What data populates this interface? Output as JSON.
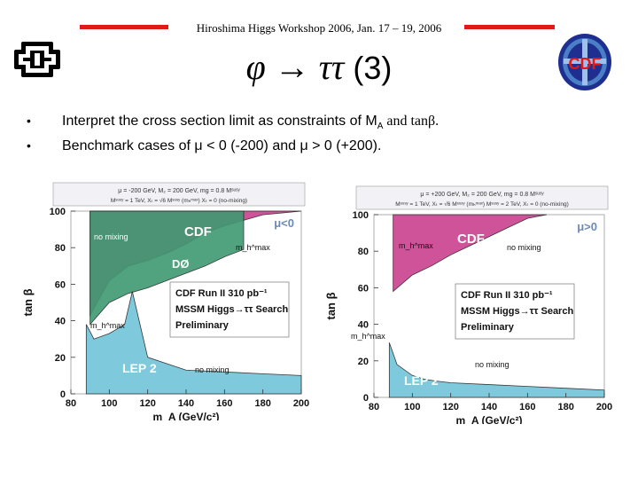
{
  "header": "Hiroshima Higgs Workshop 2006, Jan. 17 – 19, 2006",
  "title": {
    "text": "φ → ττ",
    "number": "(3)"
  },
  "bullets": [
    {
      "text": "Interpret the cross section limit as constraints of M",
      "sub": "A",
      "tail": " and tanβ."
    },
    {
      "text": "Benchmark cases of μ < 0 (-200) and μ > 0 (+200)."
    }
  ],
  "logos": {
    "left": "fermilab-logo",
    "right_text": "CDF"
  },
  "colors": {
    "cdf_magenta": "#c9418f",
    "d0_green": "#3f9a72",
    "lep_cyan": "#71c4d9",
    "accent_red": "#e01919"
  },
  "plots": [
    {
      "params_line1": "μ = -200 GeV, M₂ = 200 GeV, mɡ = 0.8 Mˢᵘˢʸ",
      "params_line2": "Mˢᵘˢʸ = 1 TeV, Xₜ = √6 Mˢᵘˢʸ (mₕᵐᵃˣ)   Xₜ = 0 (no-mixing)",
      "mu_label": "μ<0",
      "chart_data": {
        "type": "area",
        "xlabel": "m_A (GeV/c²)",
        "ylabel": "tan β",
        "xlim": [
          80,
          200
        ],
        "ylim": [
          0,
          100
        ],
        "xticks": [
          80,
          100,
          120,
          140,
          160,
          180,
          200
        ],
        "yticks": [
          0,
          20,
          40,
          60,
          80,
          100
        ],
        "series": [
          {
            "name": "CDF",
            "x": [
              90,
              100,
              110,
              120,
              130,
              140,
              150,
              160,
              180,
              200
            ],
            "y": [
              43,
              62,
              70,
              73,
              77,
              82,
              88,
              92,
              98,
              100
            ]
          },
          {
            "name": "DØ",
            "x": [
              90,
              100,
              110,
              120,
              130,
              140,
              150,
              160,
              170
            ],
            "y": [
              38,
              50,
              55,
              58,
              62,
              66,
              70,
              75,
              79
            ]
          },
          {
            "name": "LEP 2",
            "x": [
              88,
              92,
              100,
              108,
              112,
              120,
              140,
              160,
              180,
              200
            ],
            "y": [
              38,
              30,
              33,
              38,
              56,
              20,
              13,
              12,
              11,
              10
            ]
          }
        ],
        "annotations": [
          "no mixing",
          "CDF",
          "m_h^max",
          "DØ",
          "m_h^max",
          "LEP 2",
          "no mixing"
        ],
        "legend_box": [
          "CDF Run II  310 pb⁻¹",
          "MSSM Higgs→ττ Search",
          "Preliminary"
        ]
      }
    },
    {
      "params_line1": "μ = +200 GeV, M₂ = 200 GeV, mɡ = 0.8 Mˢᵘˢʸ",
      "params_line2": "Mˢᵘˢʸ = 1 TeV, Xₜ = √6 Mˢᵘˢʸ (mₕᵐᵃˣ)   Mˢᵘˢʸ = 2 TeV, Xₜ = 0 (no-mixing)",
      "mu_label": "μ>0",
      "chart_data": {
        "type": "area",
        "xlabel": "m_A (GeV/c²)",
        "ylabel": "tan β",
        "xlim": [
          80,
          200
        ],
        "ylim": [
          0,
          100
        ],
        "xticks": [
          80,
          100,
          120,
          140,
          160,
          180,
          200
        ],
        "yticks": [
          0,
          20,
          40,
          60,
          80,
          100
        ],
        "series": [
          {
            "name": "CDF",
            "x": [
              90,
              100,
              110,
              120,
              130,
              140,
              150,
              160,
              170
            ],
            "y": [
              58,
              67,
              72,
              78,
              83,
              88,
              93,
              98,
              100
            ]
          },
          {
            "name": "LEP 2",
            "x": [
              88,
              92,
              100,
              106,
              112,
              120,
              140,
              160,
              180,
              200
            ],
            "y": [
              30,
              18,
              12,
              10,
              9,
              8,
              7,
              6,
              5,
              4
            ]
          }
        ],
        "annotations": [
          "CDF",
          "m_h^max",
          "no mixing",
          "m_h^max",
          "no mixing",
          "LEP 2"
        ],
        "legend_box": [
          "CDF Run II  310 pb⁻¹",
          "MSSM Higgs→ττ Search",
          "Preliminary"
        ]
      }
    }
  ]
}
